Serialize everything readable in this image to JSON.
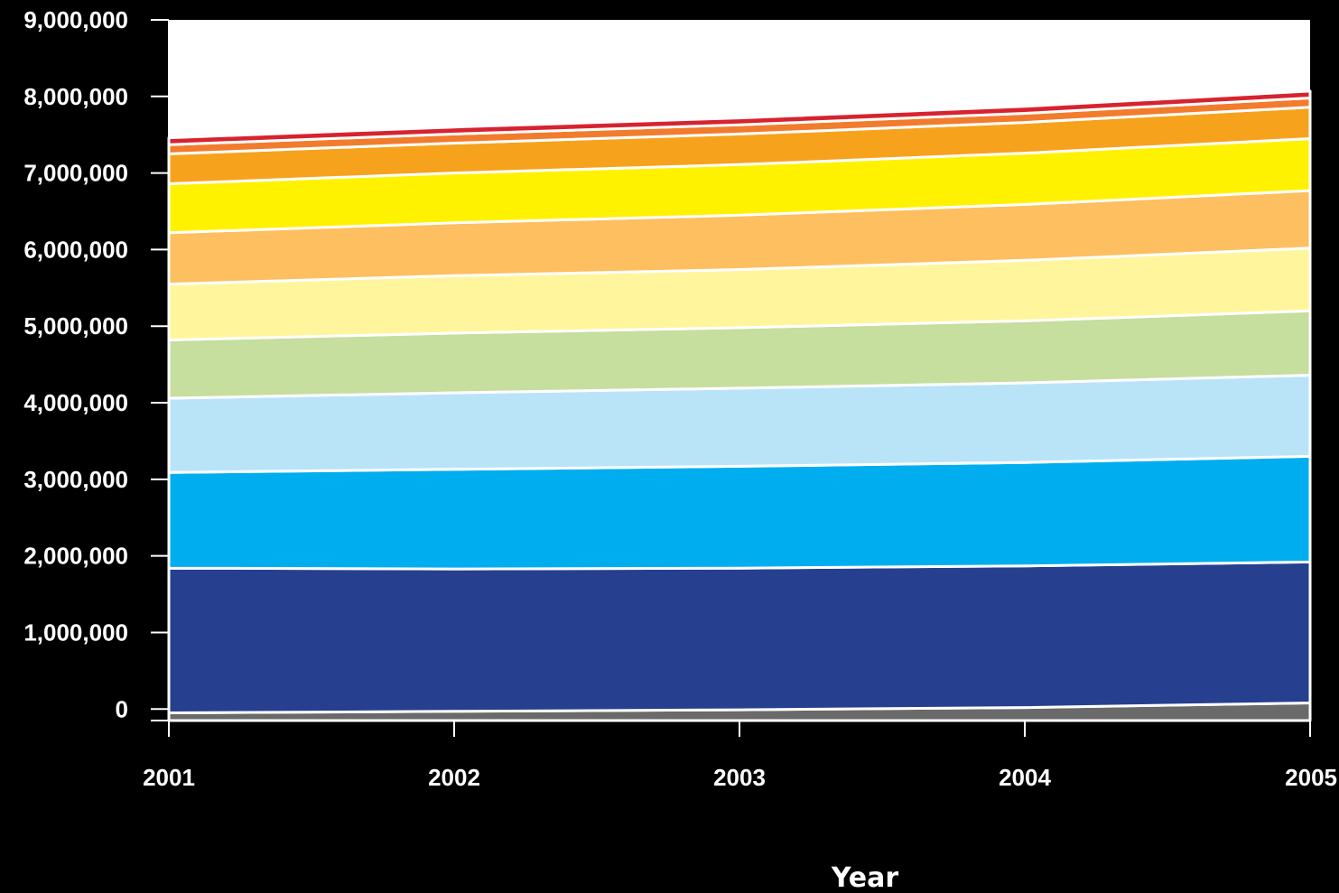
{
  "chart_data": {
    "type": "area",
    "stacked": true,
    "title": "",
    "xlabel": "Year",
    "ylabel": "",
    "x": [
      2001,
      2002,
      2003,
      2004,
      2005
    ],
    "x_tick_labels": [
      "2001",
      "2002",
      "2003",
      "2004",
      "2005"
    ],
    "ylim": [
      -150000,
      9000000
    ],
    "y_ticks": [
      0,
      1000000,
      2000000,
      3000000,
      4000000,
      5000000,
      6000000,
      7000000,
      8000000,
      9000000
    ],
    "y_tick_labels": [
      "0",
      "1,000,000",
      "2,000,000",
      "3,000,000",
      "4,000,000",
      "5,000,000",
      "6,000,000",
      "7,000,000",
      "8,000,000",
      "9,000,000"
    ],
    "grid": false,
    "legend": "none",
    "series": [
      {
        "color": "#6a6a6a",
        "values": [
          100000,
          120000,
          140000,
          170000,
          230000
        ]
      },
      {
        "color": "#26408f",
        "values": [
          1890000,
          1860000,
          1850000,
          1850000,
          1840000
        ]
      },
      {
        "color": "#00aeef",
        "values": [
          1250000,
          1300000,
          1330000,
          1350000,
          1380000
        ]
      },
      {
        "color": "#b9e4f8",
        "values": [
          970000,
          1000000,
          1020000,
          1040000,
          1060000
        ]
      },
      {
        "color": "#c6de9e",
        "values": [
          760000,
          780000,
          790000,
          810000,
          840000
        ]
      },
      {
        "color": "#fff59d",
        "values": [
          730000,
          750000,
          760000,
          790000,
          820000
        ]
      },
      {
        "color": "#fdbf5f",
        "values": [
          670000,
          690000,
          710000,
          730000,
          750000
        ]
      },
      {
        "color": "#fff200",
        "values": [
          640000,
          650000,
          660000,
          670000,
          680000
        ]
      },
      {
        "color": "#f7a21d",
        "values": [
          390000,
          390000,
          400000,
          400000,
          410000
        ]
      },
      {
        "color": "#f27c2d",
        "values": [
          120000,
          120000,
          120000,
          120000,
          120000
        ]
      },
      {
        "color": "#d7232f",
        "values": [
          90000,
          90000,
          90000,
          90000,
          90000
        ]
      }
    ]
  }
}
